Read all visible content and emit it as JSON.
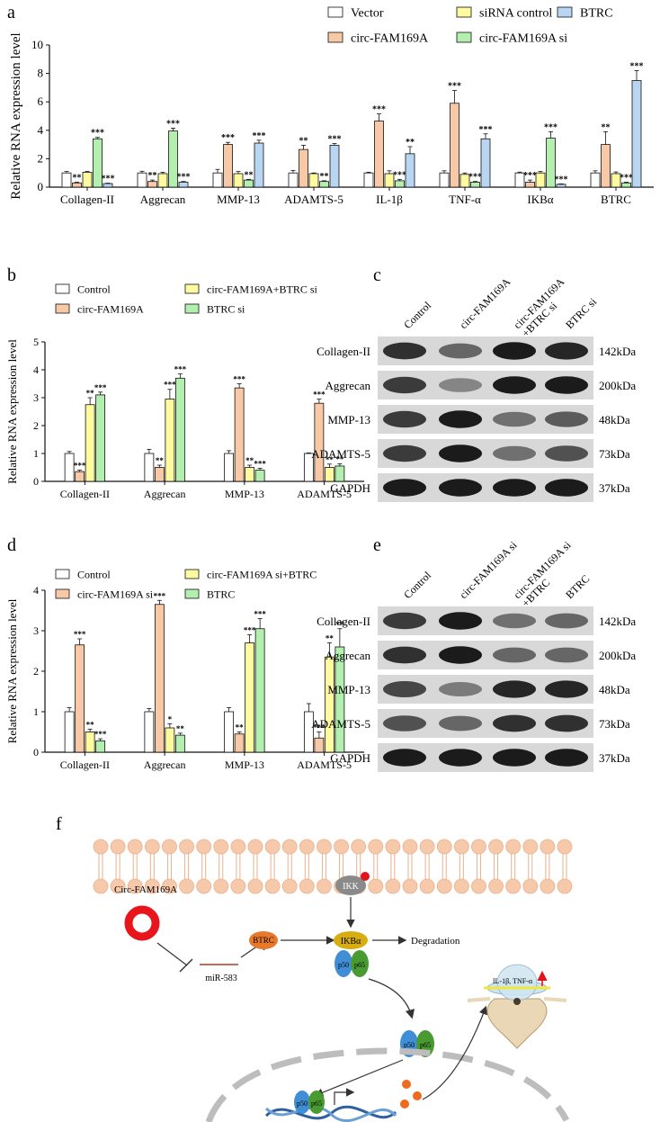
{
  "panels": {
    "a": "a",
    "b": "b",
    "c": "c",
    "d": "d",
    "e": "e",
    "f": "f"
  },
  "chart_data": [
    {
      "id": "a",
      "type": "bar",
      "ylabel": "Relative RNA expression level",
      "ylim": [
        0,
        10
      ],
      "yticks": [
        0,
        2,
        4,
        6,
        8,
        10
      ],
      "categories": [
        "Collagen-II",
        "Aggrecan",
        "MMP-13",
        "ADAMTS-5",
        "IL-1β",
        "TNF-α",
        "IKBα",
        "BTRC"
      ],
      "legend": "top",
      "series": [
        {
          "name": "Vector",
          "color": "#ffffff",
          "values": [
            1.0,
            1.0,
            1.0,
            1.0,
            1.0,
            1.0,
            1.0,
            1.0
          ],
          "err": [
            0.1,
            0.12,
            0.25,
            0.18,
            0.05,
            0.15,
            0.06,
            0.15
          ],
          "sig": [
            "",
            "",
            "",
            "",
            "",
            "",
            "",
            ""
          ]
        },
        {
          "name": "circ-FAM169A",
          "color": "#f8c9a6",
          "values": [
            0.3,
            0.4,
            3.0,
            2.65,
            4.65,
            5.9,
            0.35,
            3.0
          ],
          "err": [
            0.05,
            0.1,
            0.15,
            0.3,
            0.5,
            0.9,
            0.15,
            0.9
          ],
          "sig": [
            "**",
            "**",
            "***",
            "**",
            "***",
            "***",
            "***",
            "**"
          ]
        },
        {
          "name": "siRNA control",
          "color": "#fdfaa0",
          "values": [
            1.05,
            0.95,
            0.95,
            0.95,
            0.95,
            0.9,
            1.0,
            0.95
          ],
          "err": [
            0.05,
            0.1,
            0.15,
            0.05,
            0.2,
            0.1,
            0.1,
            0.12
          ],
          "sig": [
            "",
            "",
            "",
            "",
            "",
            "",
            "",
            ""
          ]
        },
        {
          "name": "circ-FAM169A si",
          "color": "#b3f0b0",
          "values": [
            3.4,
            3.95,
            0.5,
            0.4,
            0.45,
            0.35,
            3.45,
            0.3
          ],
          "err": [
            0.1,
            0.2,
            0.05,
            0.05,
            0.1,
            0.05,
            0.45,
            0.05
          ],
          "sig": [
            "***",
            "***",
            "**",
            "**",
            "***",
            "***",
            "***",
            "***"
          ]
        },
        {
          "name": "BTRC",
          "color": "#b8d6f2",
          "values": [
            0.25,
            0.35,
            3.1,
            2.95,
            2.35,
            3.4,
            0.2,
            7.5
          ],
          "err": [
            0.03,
            0.05,
            0.2,
            0.12,
            0.5,
            0.35,
            0.03,
            0.7
          ],
          "sig": [
            "***",
            "***",
            "***",
            "***",
            "**",
            "***",
            "***",
            "***"
          ]
        }
      ]
    },
    {
      "id": "b",
      "type": "bar",
      "ylabel": "Relative RNA expression level",
      "ylim": [
        0,
        5
      ],
      "yticks": [
        0,
        1,
        2,
        3,
        4,
        5
      ],
      "categories": [
        "Collagen-II",
        "Aggrecan",
        "MMP-13",
        "ADAMTS-5"
      ],
      "legend": "top",
      "series": [
        {
          "name": "Control",
          "color": "#ffffff",
          "values": [
            1.0,
            1.0,
            1.0,
            1.0
          ],
          "err": [
            0.07,
            0.15,
            0.1,
            0.02
          ],
          "sig": [
            "",
            "",
            "",
            ""
          ]
        },
        {
          "name": "circ-FAM169A",
          "color": "#f8c9a6",
          "values": [
            0.35,
            0.5,
            3.35,
            2.8
          ],
          "err": [
            0.05,
            0.08,
            0.15,
            0.15
          ],
          "sig": [
            "***",
            "**",
            "***",
            "***"
          ]
        },
        {
          "name": "circ-FAM169A+BTRC si",
          "color": "#fdfaa0",
          "values": [
            2.75,
            2.95,
            0.5,
            0.5
          ],
          "err": [
            0.25,
            0.35,
            0.08,
            0.12
          ],
          "sig": [
            "**",
            "***",
            "**",
            "**"
          ]
        },
        {
          "name": "BTRC si",
          "color": "#b3f0b0",
          "values": [
            3.1,
            3.7,
            0.4,
            0.55
          ],
          "err": [
            0.1,
            0.15,
            0.07,
            0.08
          ],
          "sig": [
            "***",
            "***",
            "***",
            "**"
          ]
        }
      ]
    },
    {
      "id": "d",
      "type": "bar",
      "ylabel": "Relative RNA expression level",
      "ylim": [
        0,
        4
      ],
      "yticks": [
        0,
        1,
        2,
        3,
        4
      ],
      "categories": [
        "Collagen-II",
        "Aggrecan",
        "MMP-13",
        "ADAMTS-5"
      ],
      "legend": "top",
      "series": [
        {
          "name": "Control",
          "color": "#ffffff",
          "values": [
            1.0,
            1.0,
            1.0,
            1.0
          ],
          "err": [
            0.1,
            0.08,
            0.1,
            0.2
          ],
          "sig": [
            "",
            "",
            "",
            ""
          ]
        },
        {
          "name": "circ-FAM169A si",
          "color": "#f8c9a6",
          "values": [
            2.65,
            3.65,
            0.45,
            0.35
          ],
          "err": [
            0.15,
            0.1,
            0.05,
            0.15
          ],
          "sig": [
            "***",
            "***",
            "**",
            "***"
          ]
        },
        {
          "name": "circ-FAM169A si+BTRC",
          "color": "#fdfaa0",
          "values": [
            0.5,
            0.6,
            2.7,
            2.35
          ],
          "err": [
            0.07,
            0.1,
            0.2,
            0.35
          ],
          "sig": [
            "**",
            "*",
            "***",
            "**"
          ]
        },
        {
          "name": "BTRC",
          "color": "#b3f0b0",
          "values": [
            0.28,
            0.42,
            3.05,
            2.6
          ],
          "err": [
            0.05,
            0.05,
            0.25,
            0.45
          ],
          "sig": [
            "***",
            "**",
            "***",
            "**"
          ]
        }
      ]
    }
  ],
  "western_c": {
    "lanes": [
      "Control",
      "circ-FAM169A",
      "circ-FAM169A\n+BTRC si",
      "BTRC si"
    ],
    "rows": [
      {
        "label": "Collagen-II",
        "kda": "142kDa",
        "intensity": [
          0.85,
          0.6,
          0.95,
          0.9
        ]
      },
      {
        "label": "Aggrecan",
        "kda": "200kDa",
        "intensity": [
          0.8,
          0.45,
          0.95,
          0.95
        ]
      },
      {
        "label": "MMP-13",
        "kda": "48kDa",
        "intensity": [
          0.8,
          0.95,
          0.55,
          0.65
        ]
      },
      {
        "label": "ADAMTS-5",
        "kda": "73kDa",
        "intensity": [
          0.8,
          0.95,
          0.55,
          0.7
        ]
      },
      {
        "label": "GAPDH",
        "kda": "37kDa",
        "intensity": [
          0.95,
          0.95,
          0.95,
          0.95
        ]
      }
    ]
  },
  "western_e": {
    "lanes": [
      "Control",
      "circ-FAM169A si",
      "circ-FAM169A si\n+BTRC",
      "BTRC"
    ],
    "rows": [
      {
        "label": "Collagen-II",
        "kda": "142kDa",
        "intensity": [
          0.8,
          0.95,
          0.55,
          0.6
        ]
      },
      {
        "label": "Aggrecan",
        "kda": "200kDa",
        "intensity": [
          0.85,
          0.95,
          0.6,
          0.6
        ]
      },
      {
        "label": "MMP-13",
        "kda": "48kDa",
        "intensity": [
          0.75,
          0.5,
          0.9,
          0.9
        ]
      },
      {
        "label": "ADAMTS-5",
        "kda": "73kDa",
        "intensity": [
          0.7,
          0.6,
          0.85,
          0.85
        ]
      },
      {
        "label": "GAPDH",
        "kda": "37kDa",
        "intensity": [
          0.95,
          0.95,
          0.95,
          0.95
        ]
      }
    ]
  },
  "pathway": {
    "circ": "Circ-FAM169A",
    "mirna": "miR-583",
    "btrc": "BTRC",
    "ikk": "IKK",
    "ikba": "IKBα",
    "degradation": "Degradation",
    "p50": "p50",
    "p65": "p65",
    "cytokines": "IL-1β, TNF-α"
  }
}
